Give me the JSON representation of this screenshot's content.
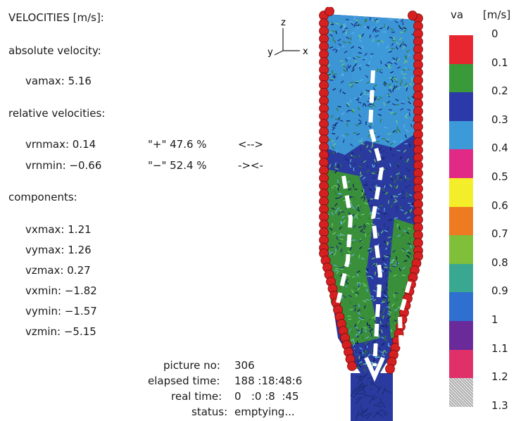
{
  "title": "VELOCITIES [m/s]:",
  "absolute": {
    "heading": "absolute velocity:",
    "vamax": "vamax: 5.16"
  },
  "relative": {
    "heading": "relative velocities:",
    "vrnmax": "vrnmax: 0.14",
    "plus_label": "\"+\" 47.6 %",
    "plus_arrow": "<-->",
    "vrnmin": "vrnmin: −0.66",
    "minus_label": "\"−\" 52.4 %",
    "minus_arrow": "-><-"
  },
  "components": {
    "heading": "components:",
    "items": [
      "vxmax: 1.21",
      "vymax: 1.26",
      "vzmax: 0.27",
      "vxmin: −1.82",
      "vymin: −1.57",
      "vzmin: −5.15"
    ]
  },
  "axes": {
    "z": "z",
    "y": "y",
    "x": "x"
  },
  "status": {
    "picture_label": "picture no:",
    "picture_value": "306",
    "elapsed_label": "elapsed time:",
    "elapsed_value": "188 :18:48:6",
    "real_label": "real time:",
    "real_value": "0   :0 :8  :45",
    "status_label": "status:",
    "status_value": "emptying..."
  },
  "legend": {
    "var": "va",
    "unit": "[m/s]",
    "ticks": [
      "0",
      "0.1",
      "0.2",
      "0.3",
      "0.4",
      "0.5",
      "0.6",
      "0.7",
      "0.8",
      "0.9",
      "1",
      "1.1",
      "1.2",
      "1.3"
    ],
    "colors": [
      "#e8262f",
      "#3a9a3a",
      "#2b3aa8",
      "#3d9ad8",
      "#e02a86",
      "#f4ee2a",
      "#ee7a22",
      "#7fbf3a",
      "#3aa890",
      "#2f6fd0",
      "#6a2a9a",
      "#e0306a",
      "#b8b8b8"
    ]
  },
  "vessel_colors": {
    "wall": "#d42020",
    "blue": "#2a3a9e",
    "light": "#3d9ad8",
    "green": "#3a8f3a",
    "flow": "#ffffff"
  }
}
